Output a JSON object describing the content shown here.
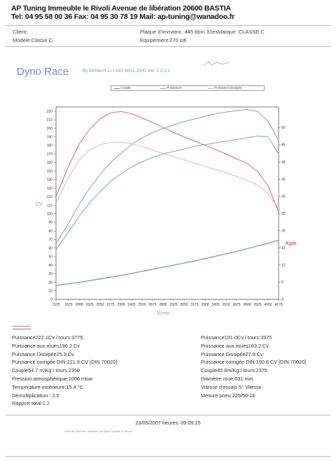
{
  "header": {
    "line1": "AP Tuning Immeuble le Rivoli Avenue de libération 20600 BASTIA",
    "line2": "Tel: 04 95 58 00 36 Fax: 04 95 30 78 19 Mail: ap-tuning@wanadoo.fr"
  },
  "info": {
    "client": "Client:",
    "modele": "Modèle:Classe C",
    "plaque": "Plaque d'immatric. 445 bbm 31esMarque: CLASSE C",
    "equipement": "Equipement:270 cdi"
  },
  "logo_text": "Dyno Race",
  "subtitle": "By Dimtech s.r.l  ISO 9001:2000  Ver. 2.0.2.1",
  "chart_data": {
    "type": "line",
    "legend": [
      "Couple",
      "Puissance",
      "Puissance Dissipée"
    ],
    "xlabel": "R/min",
    "ylabel_left": "CV",
    "ylabel_right": "Kgm",
    "x_ticks": [
      1525,
      1675,
      1800,
      1925,
      2050,
      2175,
      2300,
      2425,
      2550,
      2675,
      2800,
      2925,
      3050,
      3175,
      3300,
      3425,
      3550,
      3675,
      3800,
      3925,
      4050,
      4175
    ],
    "y_left_ticks": [
      0,
      10,
      20,
      30,
      40,
      50,
      60,
      70,
      80,
      90,
      100,
      110,
      120,
      130,
      140,
      150,
      160,
      170,
      180,
      190,
      200,
      210,
      220
    ],
    "y_right_ticks": [
      0,
      5,
      10,
      15,
      20,
      25,
      30,
      35,
      40,
      45,
      50
    ],
    "x": [
      1525,
      1675,
      1800,
      1925,
      2050,
      2175,
      2300,
      2425,
      2550,
      2675,
      2800,
      2925,
      3050,
      3175,
      3300,
      3425,
      3550,
      3675,
      3800,
      3925,
      4050,
      4175
    ],
    "series": [
      {
        "name": "Puissance run 1",
        "axis": "left",
        "color": "#6f93c9",
        "values": [
          65,
          89,
          111,
          130,
          146,
          160,
          171,
          181,
          189,
          195,
          200,
          204,
          208,
          211,
          214,
          217,
          219,
          221,
          222,
          220,
          208,
          186
        ]
      },
      {
        "name": "Puissance run 2",
        "axis": "left",
        "color": "#6f93c9",
        "values": [
          58,
          79,
          97,
          113,
          126,
          138,
          147,
          155,
          161,
          166,
          170,
          173,
          176,
          179,
          181,
          183,
          185,
          187,
          189,
          191,
          190,
          170
        ]
      },
      {
        "name": "Couple run 1",
        "axis": "right",
        "color": "#c85a6a",
        "values": [
          30.0,
          38.8,
          45.2,
          49.5,
          52.6,
          54.3,
          54.7,
          54.0,
          52.8,
          51.5,
          50.0,
          48.6,
          47.3,
          46.1,
          44.8,
          43.6,
          42.3,
          40.9,
          39.6,
          37.2,
          33.0,
          25.5
        ]
      },
      {
        "name": "Couple run 2",
        "axis": "right",
        "color": "#e3a8b2",
        "values": [
          28.0,
          35.5,
          40.5,
          43.5,
          45.0,
          45.7,
          45.8,
          45.3,
          44.5,
          43.5,
          42.5,
          41.5,
          40.6,
          39.7,
          38.7,
          37.8,
          36.9,
          35.8,
          34.6,
          33.3,
          30.8,
          26.5
        ]
      },
      {
        "name": "Puissance Dissipée run 1",
        "axis": "right",
        "color": "#7fae8e",
        "values": [
          4.1,
          4.6,
          5.0,
          5.5,
          6.0,
          6.5,
          7.0,
          7.6,
          8.2,
          8.8,
          9.4,
          10.0,
          10.6,
          11.2,
          11.9,
          12.6,
          13.3,
          14.0,
          14.8,
          15.6,
          16.4,
          17.3
        ]
      },
      {
        "name": "Puissance Dissipée run 2",
        "axis": "right",
        "color": "#999999",
        "values": [
          4.0,
          4.5,
          4.9,
          5.4,
          5.9,
          6.4,
          6.9,
          7.5,
          8.1,
          8.7,
          9.3,
          9.9,
          10.5,
          11.1,
          11.8,
          12.5,
          13.2,
          13.9,
          14.7,
          15.5,
          16.3,
          17.1
        ]
      }
    ],
    "ylim_left": [
      0,
      225
    ],
    "ylim_right": [
      0,
      56
    ],
    "xlim": [
      1525,
      4175
    ]
  },
  "results_left": [
    "Puissance222.1Cv / tours:3775",
    "Puissance aux roues196.2 Cv",
    "Puissance Dissipée25.9 Cv",
    "Puissance corrigée DIN:221.8 CV  [DIN 70020]",
    "Couple54.7 m/Kg / tours:2350",
    "Pression atmosphérique:1006 mbar",
    "Température extérieure:15.4 °C",
    "Démultiplication : 2.5",
    "Rapport total:1.2"
  ],
  "results_right": [
    "Puissance191.0Cv / tours:3975",
    "Puissance aux roues163.2 Cv",
    "Puissance Dissipée27.8 Cv",
    "Puissance corrigée DIN:190.8 CV  [DIN 70020]",
    "Couple45.8m/Kg / tours:2375",
    "Diamètre roue:631 mm",
    "Vitesse d'essais 5° Vitesse",
    "Mesure pneu:225/50-16"
  ],
  "footer": {
    "date": "23/05/2007 heures: 09:09:25",
    "note": "Prise de mesures réalisées par Sport System à Tensor"
  }
}
